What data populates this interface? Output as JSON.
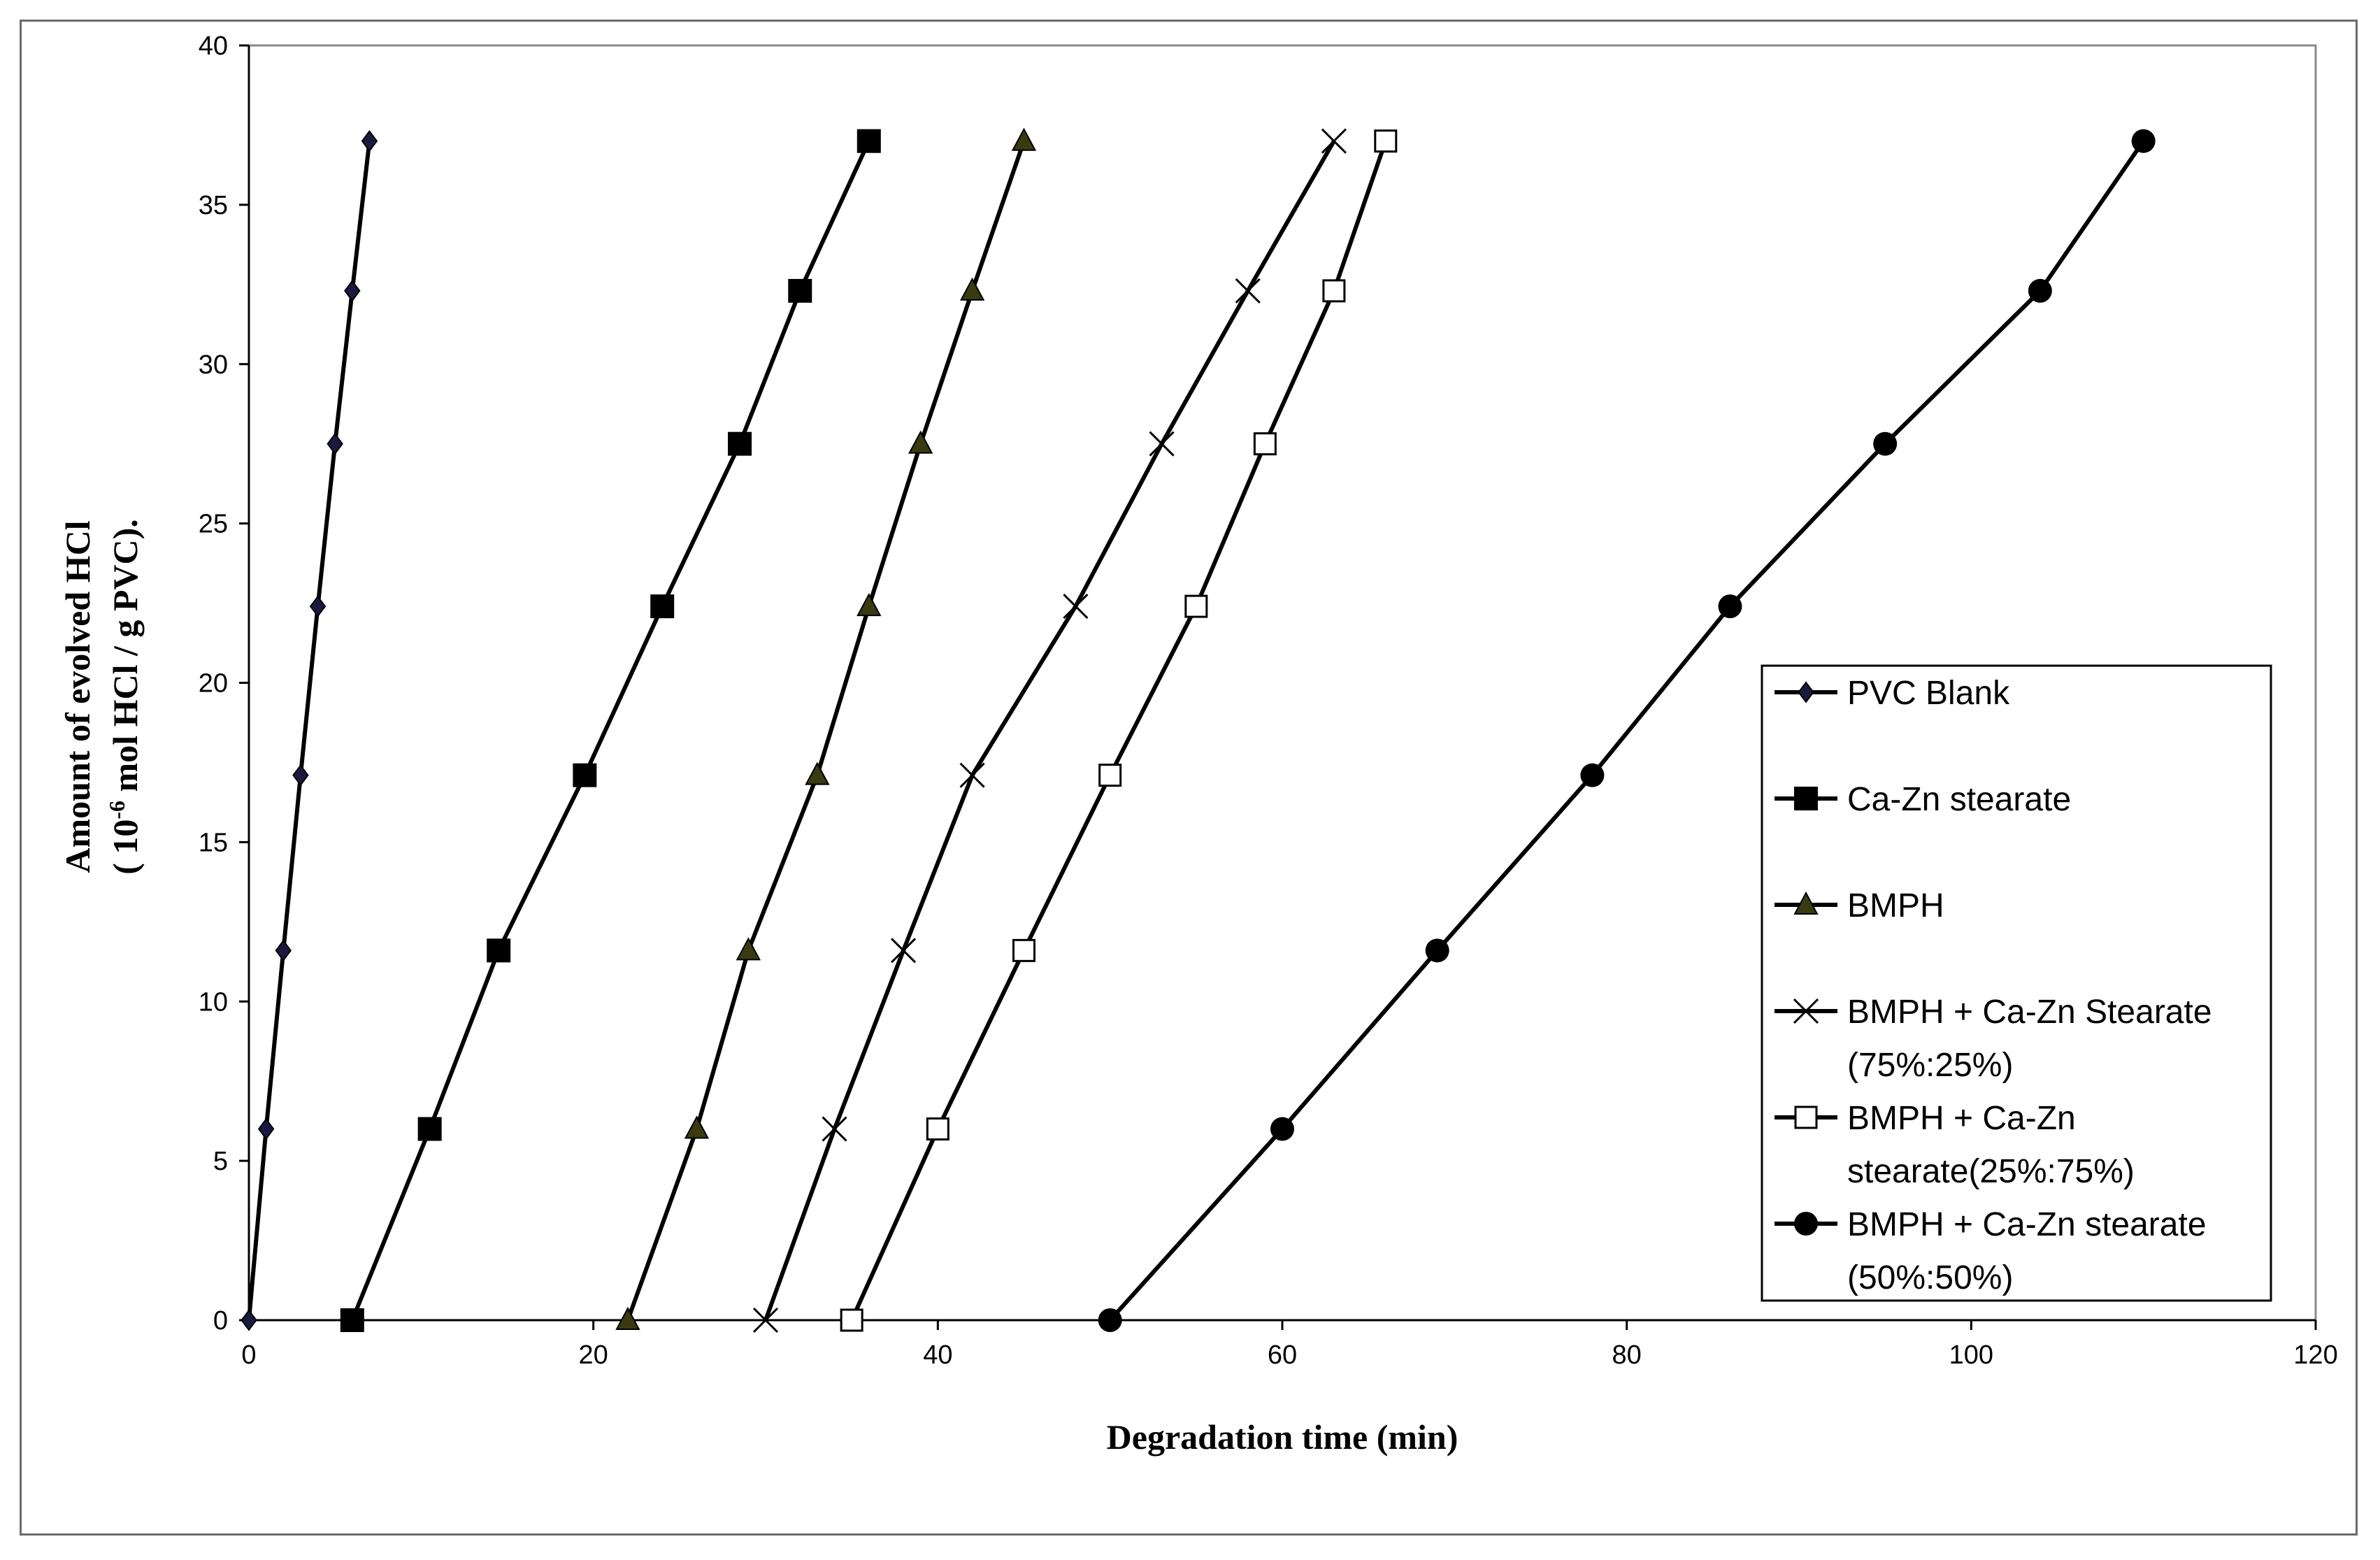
{
  "chart_data": {
    "type": "line",
    "title": "",
    "xlabel": "Degradation time (min)",
    "ylabel_line1": "Amount of evolved HCl",
    "ylabel_line2_pre": "( 10",
    "ylabel_line2_sup": "-6",
    "ylabel_line2_post": " mol HCl / g PVC).",
    "xlim": [
      0,
      120
    ],
    "ylim": [
      0,
      40
    ],
    "xticks": [
      0,
      20,
      40,
      60,
      80,
      100,
      120
    ],
    "yticks": [
      0,
      5,
      10,
      15,
      20,
      25,
      30,
      35,
      40
    ],
    "grid": false,
    "legend_position": "right",
    "series": [
      {
        "name": "PVC Blank",
        "marker": "diamond",
        "x": [
          0,
          1,
          2,
          3,
          4,
          5,
          6,
          7
        ],
        "y": [
          0,
          6,
          11.6,
          17.1,
          22.4,
          27.5,
          32.3,
          37
        ]
      },
      {
        "name": "Ca-Zn stearate",
        "marker": "square-filled",
        "x": [
          6,
          10.5,
          14.5,
          19.5,
          24,
          28.5,
          32,
          36
        ],
        "y": [
          0,
          6,
          11.6,
          17.1,
          22.4,
          27.5,
          32.3,
          37
        ]
      },
      {
        "name": "BMPH",
        "marker": "triangle",
        "x": [
          22,
          26,
          29,
          33,
          36,
          39,
          42,
          45
        ],
        "y": [
          0,
          6,
          11.6,
          17.1,
          22.4,
          27.5,
          32.3,
          37
        ]
      },
      {
        "name": "BMPH + Ca-Zn Stearate",
        "name_line2": "(75%:25%)",
        "marker": "x",
        "x": [
          30,
          34,
          38,
          42,
          48,
          53,
          58,
          63
        ],
        "y": [
          0,
          6,
          11.6,
          17.1,
          22.4,
          27.5,
          32.3,
          37
        ]
      },
      {
        "name": "BMPH + Ca-Zn",
        "name_line2": "stearate(25%:75%)",
        "marker": "square-open",
        "x": [
          35,
          40,
          45,
          50,
          55,
          59,
          63,
          66
        ],
        "y": [
          0,
          6,
          11.6,
          17.1,
          22.4,
          27.5,
          32.3,
          37
        ]
      },
      {
        "name": "BMPH + Ca-Zn stearate",
        "name_line2": "(50%:50%)",
        "marker": "circle",
        "x": [
          50,
          60,
          69,
          78,
          86,
          95,
          104,
          110
        ],
        "y": [
          0,
          6,
          11.6,
          17.1,
          22.4,
          27.5,
          32.3,
          37
        ]
      }
    ]
  }
}
